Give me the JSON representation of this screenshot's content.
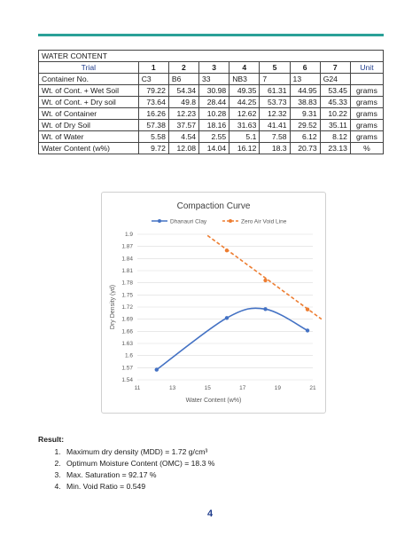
{
  "table": {
    "title": "WATER CONTENT",
    "trial_label": "Trial",
    "trials": [
      "1",
      "2",
      "3",
      "4",
      "5",
      "6",
      "7"
    ],
    "unit_header": "Unit",
    "rows": [
      {
        "label": "Container No.",
        "values": [
          "C3",
          "B6",
          "33",
          "NB3",
          "7",
          "13",
          "G24"
        ],
        "unit": ""
      },
      {
        "label": "Wt. of Cont. + Wet Soil",
        "values": [
          "79.22",
          "54.34",
          "30.98",
          "49.35",
          "61.31",
          "44.95",
          "53.45"
        ],
        "unit": "grams"
      },
      {
        "label": "Wt. of Cont. + Dry soil",
        "values": [
          "73.64",
          "49.8",
          "28.44",
          "44.25",
          "53.73",
          "38.83",
          "45.33"
        ],
        "unit": "grams"
      },
      {
        "label": "Wt. of Container",
        "values": [
          "16.26",
          "12.23",
          "10.28",
          "12.62",
          "12.32",
          "9.31",
          "10.22"
        ],
        "unit": "grams"
      },
      {
        "label": "Wt. of Dry Soil",
        "values": [
          "57.38",
          "37.57",
          "18.16",
          "31.63",
          "41.41",
          "29.52",
          "35.11"
        ],
        "unit": "grams"
      },
      {
        "label": "Wt. of Water",
        "values": [
          "5.58",
          "4.54",
          "2.55",
          "5.1",
          "7.58",
          "6.12",
          "8.12"
        ],
        "unit": "grams"
      },
      {
        "label": "Water Content (w%)",
        "values": [
          "9.72",
          "12.08",
          "14.04",
          "16.12",
          "18.3",
          "20.73",
          "23.13"
        ],
        "unit": "%"
      }
    ]
  },
  "chart_data": {
    "type": "line",
    "title": "Compaction Curve",
    "xlabel": "Water Content (w%)",
    "ylabel": "Dry Density (γd)",
    "xlim": [
      11,
      21
    ],
    "ylim": [
      1.54,
      1.9
    ],
    "xticks": [
      "11",
      "13",
      "15",
      "17",
      "19",
      "21"
    ],
    "yticks": [
      "1.54",
      "1.57",
      "1.6",
      "1.63",
      "1.66",
      "1.69",
      "1.72",
      "1.75",
      "1.78",
      "1.81",
      "1.84",
      "1.87",
      "1.9"
    ],
    "legend_position": "top",
    "grid": true,
    "series": [
      {
        "name": "Dhanauri Clay",
        "color": "#4472c4",
        "style": "solid",
        "smooth": true,
        "points": [
          [
            12.1,
            1.565
          ],
          [
            16.1,
            1.693
          ],
          [
            18.3,
            1.715
          ],
          [
            20.7,
            1.662
          ]
        ]
      },
      {
        "name": "Zero Air Void Line",
        "color": "#ed7d31",
        "style": "dashed",
        "smooth": false,
        "points": [
          [
            16.1,
            1.86
          ],
          [
            18.3,
            1.786
          ],
          [
            20.7,
            1.714
          ]
        ],
        "line_start": [
          15.0,
          1.897
        ],
        "line_end": [
          21.5,
          1.69
        ]
      }
    ]
  },
  "result": {
    "title": "Result:",
    "items": [
      "Maximum dry density (MDD) = 1.72 g/cm³",
      "Optimum Moisture Content (OMC) = 18.3 %",
      "Max. Saturation = 92.17 %",
      "Min. Void Ratio = 0.549"
    ]
  },
  "page_number": "4"
}
